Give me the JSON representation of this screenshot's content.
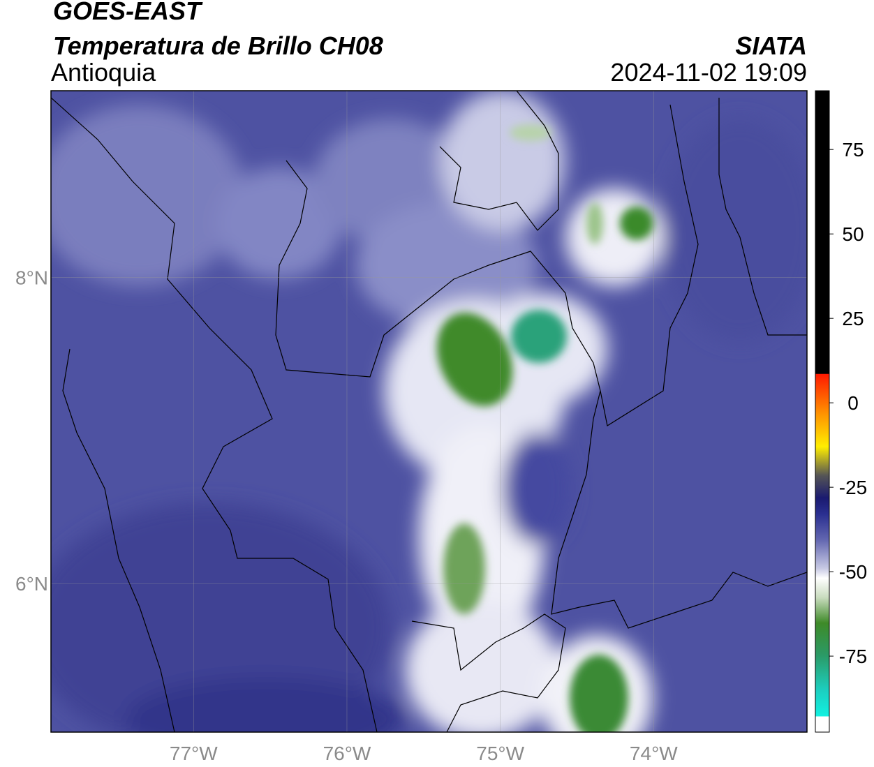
{
  "header": {
    "satellite": "GOES-EAST",
    "product": "Temperatura de Brillo CH08",
    "region": "Antioquia",
    "source": "SIATA",
    "datetime": "2024-11-02 19:09"
  },
  "map": {
    "xlim": [
      -77.93,
      -73.0
    ],
    "ylim": [
      5.03,
      9.22
    ],
    "xticks": [
      {
        "value": -77,
        "label": "77°W"
      },
      {
        "value": -76,
        "label": "76°W"
      },
      {
        "value": -75,
        "label": "75°W"
      },
      {
        "value": -74,
        "label": "74°W"
      }
    ],
    "yticks": [
      {
        "value": 6,
        "label": "6°N"
      },
      {
        "value": 8,
        "label": "8°N"
      }
    ]
  },
  "colorbar": {
    "lim": [
      -97.5,
      92.4
    ],
    "ticks": [
      75,
      50,
      25,
      0,
      -25,
      -50,
      -75
    ]
  }
}
